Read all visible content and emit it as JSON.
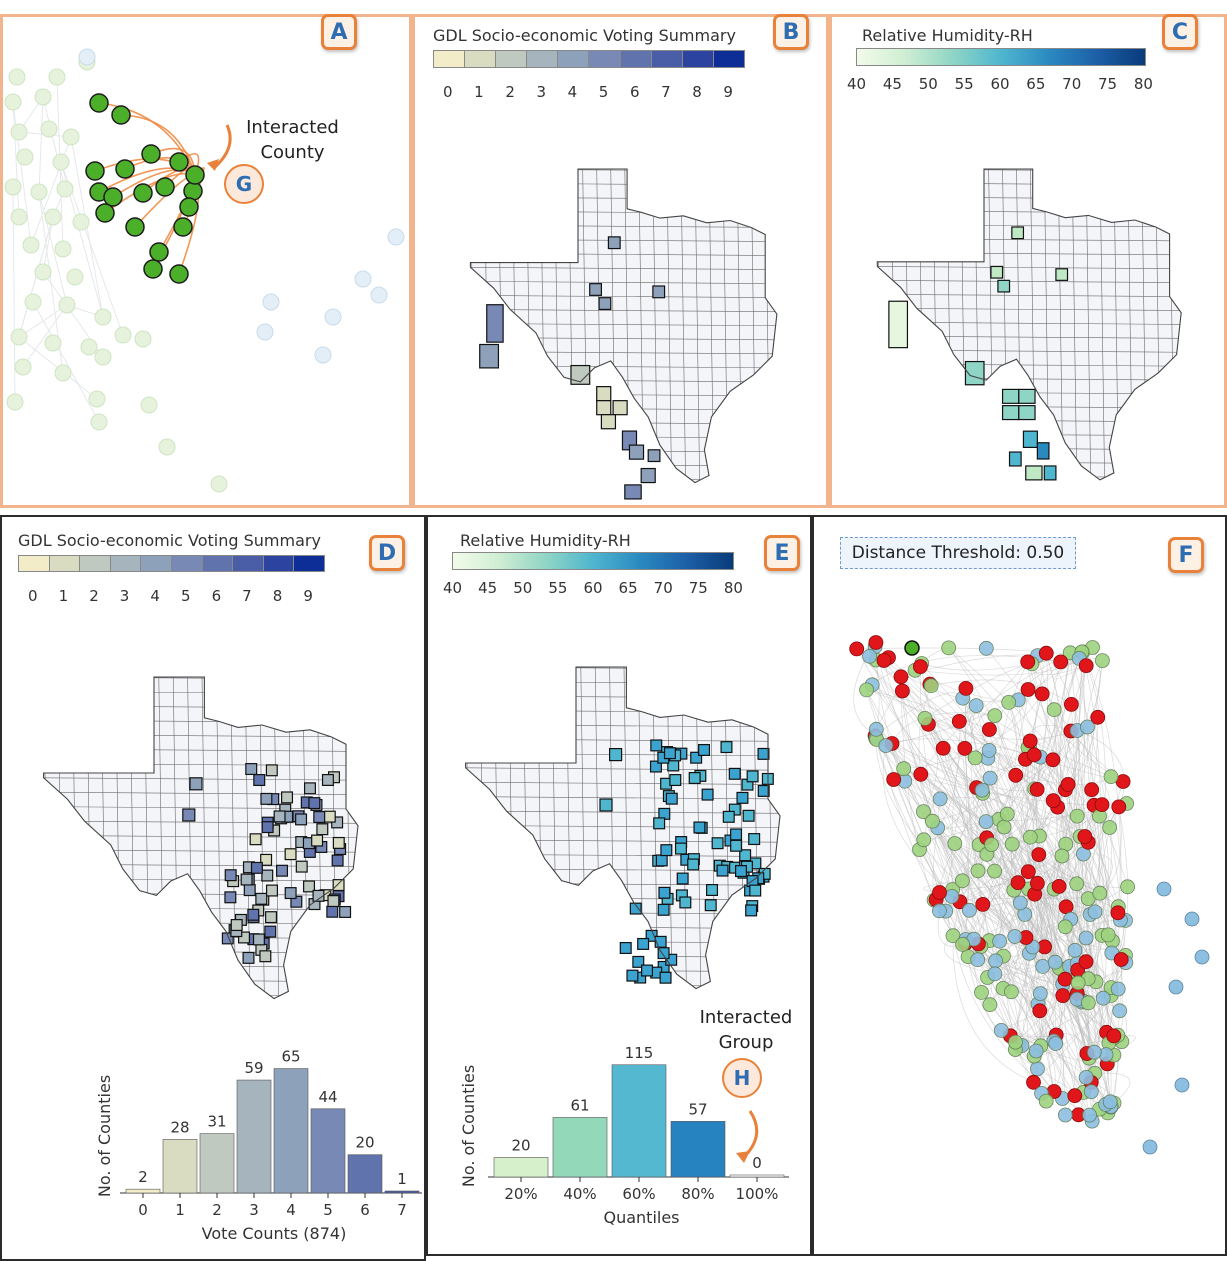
{
  "panels": {
    "a": {
      "badge": "A",
      "annotation_line1": "Interacted",
      "annotation_line2": "County",
      "tag": "G"
    },
    "b": {
      "badge": "B",
      "legend_title": "GDL Socio-economic Voting Summary",
      "ticks": [
        "0",
        "1",
        "2",
        "3",
        "4",
        "5",
        "6",
        "7",
        "8",
        "9"
      ]
    },
    "c": {
      "badge": "C",
      "legend_title": "Relative Humidity-RH",
      "ticks": [
        "40",
        "45",
        "50",
        "55",
        "60",
        "65",
        "70",
        "75",
        "80"
      ]
    },
    "d": {
      "badge": "D",
      "legend_title": "GDL Socio-economic Voting Summary",
      "ticks": [
        "0",
        "1",
        "2",
        "3",
        "4",
        "5",
        "6",
        "7",
        "8",
        "9"
      ]
    },
    "e": {
      "badge": "E",
      "legend_title": "Relative Humidity-RH",
      "ticks": [
        "40",
        "45",
        "50",
        "55",
        "60",
        "65",
        "70",
        "75",
        "80"
      ],
      "annotation_line1": "Interacted",
      "annotation_line2": "Group",
      "tag": "H"
    },
    "f": {
      "badge": "F",
      "threshold_label": "Distance Threshold: 0.50"
    }
  },
  "colors": {
    "panel_orange": "#f2b48c",
    "accent": "#e8823a",
    "node_green": "#4caf2a",
    "node_red": "#e0161a",
    "node_blue": "#8cbfe0",
    "vote_scale": [
      "#f2ecc9",
      "#d9dcc0",
      "#c0c9c0",
      "#a5b4bd",
      "#8ea1ba",
      "#7789b4",
      "#6173ad",
      "#4a5ea8",
      "#2c44a0",
      "#0d2d97"
    ],
    "rh_scale": [
      "#f3fbea",
      "#1d5fa7",
      "#083b7a"
    ]
  },
  "chart_data": [
    {
      "type": "bar",
      "id": "vote-histogram",
      "categories": [
        "0",
        "1",
        "2",
        "3",
        "4",
        "5",
        "6",
        "7"
      ],
      "values": [
        2,
        28,
        31,
        59,
        65,
        44,
        20,
        1
      ],
      "xlabel": "Vote Counts (874)",
      "ylabel": "No. of Counties",
      "ylim": [
        0,
        70
      ]
    },
    {
      "type": "bar",
      "id": "rh-quantiles",
      "categories": [
        "20%",
        "40%",
        "60%",
        "80%",
        "100%"
      ],
      "values": [
        20,
        61,
        115,
        57,
        0
      ],
      "xlabel": "Quantiles",
      "ylabel": "No. of Counties",
      "ylim": [
        0,
        125
      ]
    }
  ]
}
